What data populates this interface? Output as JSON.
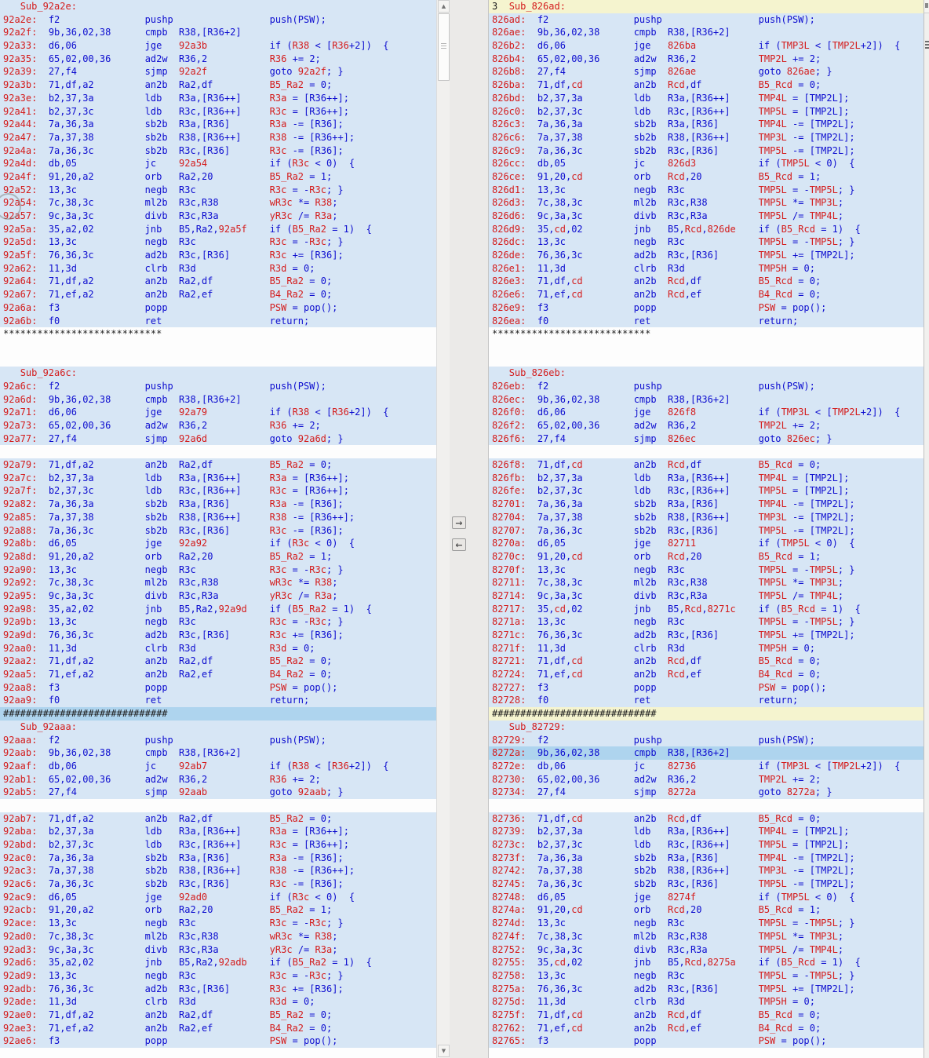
{
  "colors": {
    "row_background": "#d7e6f5",
    "gap_background": "#fdfdfd",
    "selection_background": "#aed4ee",
    "difference_background": "#f5f4cf",
    "address_red": "#d41c1c",
    "code_blue": "#0d0dcf",
    "separator_text": "#1c1c1c"
  },
  "separators": {
    "stars": "****************************",
    "hashes": "#############################"
  },
  "divider": {
    "copy_to_right": "→",
    "copy_to_left": "←",
    "scroll_up": "▲",
    "scroll_down": "▼"
  },
  "left_pane": {
    "rows": [
      [
        "hdr",
        "Sub_92a2e:"
      ],
      [
        "i",
        "92a2e:",
        "f2",
        "pushp",
        "",
        "push(PSW);"
      ],
      [
        "i",
        "92a2f:",
        "9b,36,02,38",
        "cmpb",
        "R38,[R36+2]",
        ""
      ],
      [
        "i",
        "92a33:",
        "d6,06",
        "jge",
        "92a3b",
        "if (R38 < [R36+2])  {"
      ],
      [
        "i",
        "92a35:",
        "65,02,00,36",
        "ad2w",
        "R36,2",
        "R36 += 2;"
      ],
      [
        "i",
        "92a39:",
        "27,f4",
        "sjmp",
        "92a2f",
        "goto 92a2f; }"
      ],
      [
        "i",
        "92a3b:",
        "71,df,a2",
        "an2b",
        "Ra2,df",
        "B5_Ra2 = 0;"
      ],
      [
        "i",
        "92a3e:",
        "b2,37,3a",
        "ldb",
        "R3a,[R36++]",
        "R3a = [R36++];"
      ],
      [
        "i",
        "92a41:",
        "b2,37,3c",
        "ldb",
        "R3c,[R36++]",
        "R3c = [R36++];"
      ],
      [
        "i",
        "92a44:",
        "7a,36,3a",
        "sb2b",
        "R3a,[R36]",
        "R3a -= [R36];"
      ],
      [
        "i",
        "92a47:",
        "7a,37,38",
        "sb2b",
        "R38,[R36++]",
        "R38 -= [R36++];"
      ],
      [
        "i",
        "92a4a:",
        "7a,36,3c",
        "sb2b",
        "R3c,[R36]",
        "R3c -= [R36];"
      ],
      [
        "i",
        "92a4d:",
        "db,05",
        "jc",
        "92a54",
        "if (R3c < 0)  {"
      ],
      [
        "i",
        "92a4f:",
        "91,20,a2",
        "orb",
        "Ra2,20",
        "B5_Ra2 = 1;"
      ],
      [
        "i",
        "92a52:",
        "13,3c",
        "negb",
        "R3c",
        "R3c = -R3c; }"
      ],
      [
        "i",
        "92a54:",
        "7c,38,3c",
        "ml2b",
        "R3c,R38",
        "wR3c *= R38;"
      ],
      [
        "i",
        "92a57:",
        "9c,3a,3c",
        "divb",
        "R3c,R3a",
        "yR3c /= R3a;"
      ],
      [
        "i",
        "92a5a:",
        "35,a2,02",
        "jnb",
        "B5,Ra2,92a5f",
        "if (B5_Ra2 = 1)  {"
      ],
      [
        "i",
        "92a5d:",
        "13,3c",
        "negb",
        "R3c",
        "R3c = -R3c; }"
      ],
      [
        "i",
        "92a5f:",
        "76,36,3c",
        "ad2b",
        "R3c,[R36]",
        "R3c += [R36];"
      ],
      [
        "i",
        "92a62:",
        "11,3d",
        "clrb",
        "R3d",
        "R3d = 0;"
      ],
      [
        "i",
        "92a64:",
        "71,df,a2",
        "an2b",
        "Ra2,df",
        "B5_Ra2 = 0;"
      ],
      [
        "i",
        "92a67:",
        "71,ef,a2",
        "an2b",
        "Ra2,ef",
        "B4_Ra2 = 0;"
      ],
      [
        "i",
        "92a6a:",
        "f3",
        "popp",
        "",
        "PSW = pop();"
      ],
      [
        "i",
        "92a6b:",
        "f0",
        "ret",
        "",
        "return;"
      ],
      [
        "s*"
      ],
      [
        "b"
      ],
      [
        "b"
      ],
      [
        "hdr",
        "Sub_92a6c:"
      ],
      [
        "i",
        "92a6c:",
        "f2",
        "pushp",
        "",
        "push(PSW);"
      ],
      [
        "i",
        "92a6d:",
        "9b,36,02,38",
        "cmpb",
        "R38,[R36+2]",
        ""
      ],
      [
        "i",
        "92a71:",
        "d6,06",
        "jge",
        "92a79",
        "if (R38 < [R36+2])  {"
      ],
      [
        "i",
        "92a73:",
        "65,02,00,36",
        "ad2w",
        "R36,2",
        "R36 += 2;"
      ],
      [
        "i",
        "92a77:",
        "27,f4",
        "sjmp",
        "92a6d",
        "goto 92a6d; }"
      ],
      [
        "b"
      ],
      [
        "i",
        "92a79:",
        "71,df,a2",
        "an2b",
        "Ra2,df",
        "B5_Ra2 = 0;"
      ],
      [
        "i",
        "92a7c:",
        "b2,37,3a",
        "ldb",
        "R3a,[R36++]",
        "R3a = [R36++];"
      ],
      [
        "i",
        "92a7f:",
        "b2,37,3c",
        "ldb",
        "R3c,[R36++]",
        "R3c = [R36++];"
      ],
      [
        "i",
        "92a82:",
        "7a,36,3a",
        "sb2b",
        "R3a,[R36]",
        "R3a -= [R36];"
      ],
      [
        "i",
        "92a85:",
        "7a,37,38",
        "sb2b",
        "R38,[R36++]",
        "R38 -= [R36++];"
      ],
      [
        "i",
        "92a88:",
        "7a,36,3c",
        "sb2b",
        "R3c,[R36]",
        "R3c -= [R36];"
      ],
      [
        "i",
        "92a8b:",
        "d6,05",
        "jge",
        "92a92",
        "if (R3c < 0)  {"
      ],
      [
        "i",
        "92a8d:",
        "91,20,a2",
        "orb",
        "Ra2,20",
        "B5_Ra2 = 1;"
      ],
      [
        "i",
        "92a90:",
        "13,3c",
        "negb",
        "R3c",
        "R3c = -R3c; }"
      ],
      [
        "i",
        "92a92:",
        "7c,38,3c",
        "ml2b",
        "R3c,R38",
        "wR3c *= R38;"
      ],
      [
        "i",
        "92a95:",
        "9c,3a,3c",
        "divb",
        "R3c,R3a",
        "yR3c /= R3a;"
      ],
      [
        "i",
        "92a98:",
        "35,a2,02",
        "jnb",
        "B5,Ra2,92a9d",
        "if (B5_Ra2 = 1)  {"
      ],
      [
        "i",
        "92a9b:",
        "13,3c",
        "negb",
        "R3c",
        "R3c = -R3c; }"
      ],
      [
        "i",
        "92a9d:",
        "76,36,3c",
        "ad2b",
        "R3c,[R36]",
        "R3c += [R36];"
      ],
      [
        "i",
        "92aa0:",
        "11,3d",
        "clrb",
        "R3d",
        "R3d = 0;"
      ],
      [
        "i",
        "92aa2:",
        "71,df,a2",
        "an2b",
        "Ra2,df",
        "B5_Ra2 = 0;"
      ],
      [
        "i",
        "92aa5:",
        "71,ef,a2",
        "an2b",
        "Ra2,ef",
        "B4_Ra2 = 0;"
      ],
      [
        "i",
        "92aa8:",
        "f3",
        "popp",
        "",
        "PSW = pop();"
      ],
      [
        "i",
        "92aa9:",
        "f0",
        "ret",
        "",
        "return;"
      ],
      [
        "s#",
        "sel"
      ],
      [
        "hdr",
        "Sub_92aaa:"
      ],
      [
        "i",
        "92aaa:",
        "f2",
        "pushp",
        "",
        "push(PSW);"
      ],
      [
        "i",
        "92aab:",
        "9b,36,02,38",
        "cmpb",
        "R38,[R36+2]",
        ""
      ],
      [
        "i",
        "92aaf:",
        "db,06",
        "jc",
        "92ab7",
        "if (R38 < [R36+2])  {"
      ],
      [
        "i",
        "92ab1:",
        "65,02,00,36",
        "ad2w",
        "R36,2",
        "R36 += 2;"
      ],
      [
        "i",
        "92ab5:",
        "27,f4",
        "sjmp",
        "92aab",
        "goto 92aab; }"
      ],
      [
        "b"
      ],
      [
        "i",
        "92ab7:",
        "71,df,a2",
        "an2b",
        "Ra2,df",
        "B5_Ra2 = 0;"
      ],
      [
        "i",
        "92aba:",
        "b2,37,3a",
        "ldb",
        "R3a,[R36++]",
        "R3a = [R36++];"
      ],
      [
        "i",
        "92abd:",
        "b2,37,3c",
        "ldb",
        "R3c,[R36++]",
        "R3c = [R36++];"
      ],
      [
        "i",
        "92ac0:",
        "7a,36,3a",
        "sb2b",
        "R3a,[R36]",
        "R3a -= [R36];"
      ],
      [
        "i",
        "92ac3:",
        "7a,37,38",
        "sb2b",
        "R38,[R36++]",
        "R38 -= [R36++];"
      ],
      [
        "i",
        "92ac6:",
        "7a,36,3c",
        "sb2b",
        "R3c,[R36]",
        "R3c -= [R36];"
      ],
      [
        "i",
        "92ac9:",
        "d6,05",
        "jge",
        "92ad0",
        "if (R3c < 0)  {"
      ],
      [
        "i",
        "92acb:",
        "91,20,a2",
        "orb",
        "Ra2,20",
        "B5_Ra2 = 1;"
      ],
      [
        "i",
        "92ace:",
        "13,3c",
        "negb",
        "R3c",
        "R3c = -R3c; }"
      ],
      [
        "i",
        "92ad0:",
        "7c,38,3c",
        "ml2b",
        "R3c,R38",
        "wR3c *= R38;"
      ],
      [
        "i",
        "92ad3:",
        "9c,3a,3c",
        "divb",
        "R3c,R3a",
        "yR3c /= R3a;"
      ],
      [
        "i",
        "92ad6:",
        "35,a2,02",
        "jnb",
        "B5,Ra2,92adb",
        "if (B5_Ra2 = 1)  {"
      ],
      [
        "i",
        "92ad9:",
        "13,3c",
        "negb",
        "R3c",
        "R3c = -R3c; }"
      ],
      [
        "i",
        "92adb:",
        "76,36,3c",
        "ad2b",
        "R3c,[R36]",
        "R3c += [R36];"
      ],
      [
        "i",
        "92ade:",
        "11,3d",
        "clrb",
        "R3d",
        "R3d = 0;"
      ],
      [
        "i",
        "92ae0:",
        "71,df,a2",
        "an2b",
        "Ra2,df",
        "B5_Ra2 = 0;"
      ],
      [
        "i",
        "92ae3:",
        "71,ef,a2",
        "an2b",
        "Ra2,ef",
        "B4_Ra2 = 0;"
      ],
      [
        "i",
        "92ae6:",
        "f3",
        "popp",
        "",
        "PSW = pop();"
      ]
    ]
  },
  "right_pane": {
    "rows": [
      [
        "hdr",
        "Sub_826ad:",
        "3",
        "yel"
      ],
      [
        "i",
        "826ad:",
        "f2",
        "pushp",
        "",
        "push(PSW);"
      ],
      [
        "i",
        "826ae:",
        "9b,36,02,38",
        "cmpb",
        "R38,[R36+2]",
        ""
      ],
      [
        "i",
        "826b2:",
        "d6,06",
        "jge",
        "826ba",
        "if (TMP3L < [TMP2L+2])  {"
      ],
      [
        "i",
        "826b4:",
        "65,02,00,36",
        "ad2w",
        "R36,2",
        "TMP2L += 2;"
      ],
      [
        "i",
        "826b8:",
        "27,f4",
        "sjmp",
        "826ae",
        "goto 826ae; }"
      ],
      [
        "i",
        "826ba:",
        "71,df,cd",
        "an2b",
        "Rcd,df",
        "B5_Rcd = 0;"
      ],
      [
        "i",
        "826bd:",
        "b2,37,3a",
        "ldb",
        "R3a,[R36++]",
        "TMP4L = [TMP2L];"
      ],
      [
        "i",
        "826c0:",
        "b2,37,3c",
        "ldb",
        "R3c,[R36++]",
        "TMP5L = [TMP2L];"
      ],
      [
        "i",
        "826c3:",
        "7a,36,3a",
        "sb2b",
        "R3a,[R36]",
        "TMP4L -= [TMP2L];"
      ],
      [
        "i",
        "826c6:",
        "7a,37,38",
        "sb2b",
        "R38,[R36++]",
        "TMP3L -= [TMP2L];"
      ],
      [
        "i",
        "826c9:",
        "7a,36,3c",
        "sb2b",
        "R3c,[R36]",
        "TMP5L -= [TMP2L];"
      ],
      [
        "i",
        "826cc:",
        "db,05",
        "jc",
        "826d3",
        "if (TMP5L < 0)  {"
      ],
      [
        "i",
        "826ce:",
        "91,20,cd",
        "orb",
        "Rcd,20",
        "B5_Rcd = 1;"
      ],
      [
        "i",
        "826d1:",
        "13,3c",
        "negb",
        "R3c",
        "TMP5L = -TMP5L; }"
      ],
      [
        "i",
        "826d3:",
        "7c,38,3c",
        "ml2b",
        "R3c,R38",
        "TMP5L *= TMP3L;"
      ],
      [
        "i",
        "826d6:",
        "9c,3a,3c",
        "divb",
        "R3c,R3a",
        "TMP5L /= TMP4L;"
      ],
      [
        "i",
        "826d9:",
        "35,cd,02",
        "jnb",
        "B5,Rcd,826de",
        "if (B5_Rcd = 1)  {"
      ],
      [
        "i",
        "826dc:",
        "13,3c",
        "negb",
        "R3c",
        "TMP5L = -TMP5L; }"
      ],
      [
        "i",
        "826de:",
        "76,36,3c",
        "ad2b",
        "R3c,[R36]",
        "TMP5L += [TMP2L];"
      ],
      [
        "i",
        "826e1:",
        "11,3d",
        "clrb",
        "R3d",
        "TMP5H = 0;"
      ],
      [
        "i",
        "826e3:",
        "71,df,cd",
        "an2b",
        "Rcd,df",
        "B5_Rcd = 0;"
      ],
      [
        "i",
        "826e6:",
        "71,ef,cd",
        "an2b",
        "Rcd,ef",
        "B4_Rcd = 0;"
      ],
      [
        "i",
        "826e9:",
        "f3",
        "popp",
        "",
        "PSW = pop();"
      ],
      [
        "i",
        "826ea:",
        "f0",
        "ret",
        "",
        "return;"
      ],
      [
        "s*"
      ],
      [
        "b"
      ],
      [
        "b"
      ],
      [
        "hdr",
        "Sub_826eb:"
      ],
      [
        "i",
        "826eb:",
        "f2",
        "pushp",
        "",
        "push(PSW);"
      ],
      [
        "i",
        "826ec:",
        "9b,36,02,38",
        "cmpb",
        "R38,[R36+2]",
        ""
      ],
      [
        "i",
        "826f0:",
        "d6,06",
        "jge",
        "826f8",
        "if (TMP3L < [TMP2L+2])  {"
      ],
      [
        "i",
        "826f2:",
        "65,02,00,36",
        "ad2w",
        "R36,2",
        "TMP2L += 2;"
      ],
      [
        "i",
        "826f6:",
        "27,f4",
        "sjmp",
        "826ec",
        "goto 826ec; }"
      ],
      [
        "b"
      ],
      [
        "i",
        "826f8:",
        "71,df,cd",
        "an2b",
        "Rcd,df",
        "B5_Rcd = 0;"
      ],
      [
        "i",
        "826fb:",
        "b2,37,3a",
        "ldb",
        "R3a,[R36++]",
        "TMP4L = [TMP2L];"
      ],
      [
        "i",
        "826fe:",
        "b2,37,3c",
        "ldb",
        "R3c,[R36++]",
        "TMP5L = [TMP2L];"
      ],
      [
        "i",
        "82701:",
        "7a,36,3a",
        "sb2b",
        "R3a,[R36]",
        "TMP4L -= [TMP2L];"
      ],
      [
        "i",
        "82704:",
        "7a,37,38",
        "sb2b",
        "R38,[R36++]",
        "TMP3L -= [TMP2L];"
      ],
      [
        "i",
        "82707:",
        "7a,36,3c",
        "sb2b",
        "R3c,[R36]",
        "TMP5L -= [TMP2L];"
      ],
      [
        "i",
        "8270a:",
        "d6,05",
        "jge",
        "82711",
        "if (TMP5L < 0)  {"
      ],
      [
        "i",
        "8270c:",
        "91,20,cd",
        "orb",
        "Rcd,20",
        "B5_Rcd = 1;"
      ],
      [
        "i",
        "8270f:",
        "13,3c",
        "negb",
        "R3c",
        "TMP5L = -TMP5L; }"
      ],
      [
        "i",
        "82711:",
        "7c,38,3c",
        "ml2b",
        "R3c,R38",
        "TMP5L *= TMP3L;"
      ],
      [
        "i",
        "82714:",
        "9c,3a,3c",
        "divb",
        "R3c,R3a",
        "TMP5L /= TMP4L;"
      ],
      [
        "i",
        "82717:",
        "35,cd,02",
        "jnb",
        "B5,Rcd,8271c",
        "if (B5_Rcd = 1)  {"
      ],
      [
        "i",
        "8271a:",
        "13,3c",
        "negb",
        "R3c",
        "TMP5L = -TMP5L; }"
      ],
      [
        "i",
        "8271c:",
        "76,36,3c",
        "ad2b",
        "R3c,[R36]",
        "TMP5L += [TMP2L];"
      ],
      [
        "i",
        "8271f:",
        "11,3d",
        "clrb",
        "R3d",
        "TMP5H = 0;"
      ],
      [
        "i",
        "82721:",
        "71,df,cd",
        "an2b",
        "Rcd,df",
        "B5_Rcd = 0;"
      ],
      [
        "i",
        "82724:",
        "71,ef,cd",
        "an2b",
        "Rcd,ef",
        "B4_Rcd = 0;"
      ],
      [
        "i",
        "82727:",
        "f3",
        "popp",
        "",
        "PSW = pop();"
      ],
      [
        "i",
        "82728:",
        "f0",
        "ret",
        "",
        "return;"
      ],
      [
        "s#",
        "yel"
      ],
      [
        "hdr",
        "Sub_82729:"
      ],
      [
        "i",
        "82729:",
        "f2",
        "pushp",
        "",
        "push(PSW);"
      ],
      [
        "i",
        "8272a:",
        "9b,36,02,38",
        "cmpb",
        "R38,[R36+2]",
        "",
        "sel"
      ],
      [
        "i",
        "8272e:",
        "db,06",
        "jc",
        "82736",
        "if (TMP3L < [TMP2L+2])  {"
      ],
      [
        "i",
        "82730:",
        "65,02,00,36",
        "ad2w",
        "R36,2",
        "TMP2L += 2;"
      ],
      [
        "i",
        "82734:",
        "27,f4",
        "sjmp",
        "8272a",
        "goto 8272a; }"
      ],
      [
        "b"
      ],
      [
        "i",
        "82736:",
        "71,df,cd",
        "an2b",
        "Rcd,df",
        "B5_Rcd = 0;"
      ],
      [
        "i",
        "82739:",
        "b2,37,3a",
        "ldb",
        "R3a,[R36++]",
        "TMP4L = [TMP2L];"
      ],
      [
        "i",
        "8273c:",
        "b2,37,3c",
        "ldb",
        "R3c,[R36++]",
        "TMP5L = [TMP2L];"
      ],
      [
        "i",
        "8273f:",
        "7a,36,3a",
        "sb2b",
        "R3a,[R36]",
        "TMP4L -= [TMP2L];"
      ],
      [
        "i",
        "82742:",
        "7a,37,38",
        "sb2b",
        "R38,[R36++]",
        "TMP3L -= [TMP2L];"
      ],
      [
        "i",
        "82745:",
        "7a,36,3c",
        "sb2b",
        "R3c,[R36]",
        "TMP5L -= [TMP2L];"
      ],
      [
        "i",
        "82748:",
        "d6,05",
        "jge",
        "8274f",
        "if (TMP5L < 0)  {"
      ],
      [
        "i",
        "8274a:",
        "91,20,cd",
        "orb",
        "Rcd,20",
        "B5_Rcd = 1;"
      ],
      [
        "i",
        "8274d:",
        "13,3c",
        "negb",
        "R3c",
        "TMP5L = -TMP5L; }"
      ],
      [
        "i",
        "8274f:",
        "7c,38,3c",
        "ml2b",
        "R3c,R38",
        "TMP5L *= TMP3L;"
      ],
      [
        "i",
        "82752:",
        "9c,3a,3c",
        "divb",
        "R3c,R3a",
        "TMP5L /= TMP4L;"
      ],
      [
        "i",
        "82755:",
        "35,cd,02",
        "jnb",
        "B5,Rcd,8275a",
        "if (B5_Rcd = 1)  {"
      ],
      [
        "i",
        "82758:",
        "13,3c",
        "negb",
        "R3c",
        "TMP5L = -TMP5L; }"
      ],
      [
        "i",
        "8275a:",
        "76,36,3c",
        "ad2b",
        "R3c,[R36]",
        "TMP5L += [TMP2L];"
      ],
      [
        "i",
        "8275d:",
        "11,3d",
        "clrb",
        "R3d",
        "TMP5H = 0;"
      ],
      [
        "i",
        "8275f:",
        "71,df,cd",
        "an2b",
        "Rcd,df",
        "B5_Rcd = 0;"
      ],
      [
        "i",
        "82762:",
        "71,ef,cd",
        "an2b",
        "Rcd,ef",
        "B4_Rcd = 0;"
      ],
      [
        "i",
        "82765:",
        "f3",
        "popp",
        "",
        "PSW = pop();"
      ]
    ]
  }
}
